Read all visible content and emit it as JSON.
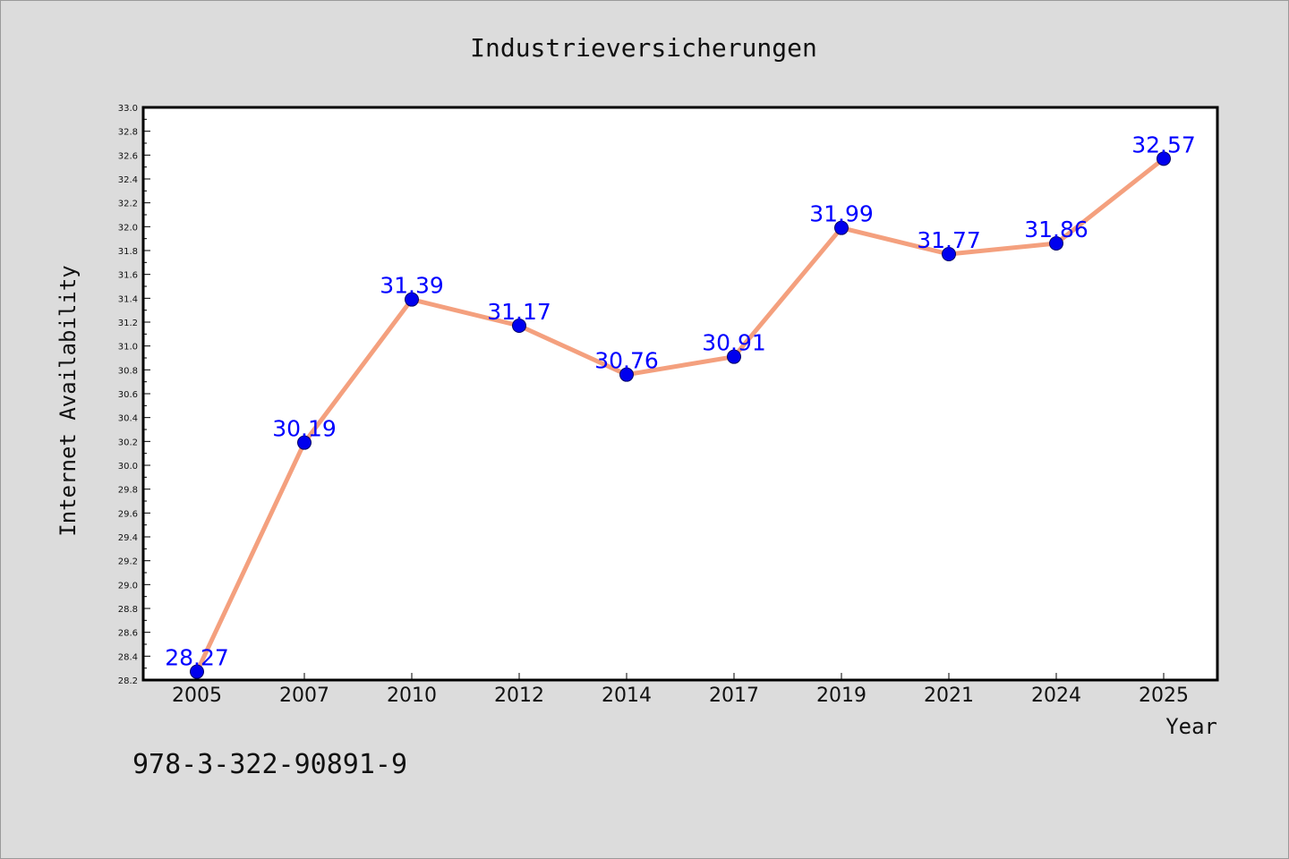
{
  "chart_data": {
    "type": "line",
    "title": "Industrieversicherungen",
    "xlabel": "Year",
    "ylabel": "Internet Availability",
    "categories": [
      "2005",
      "2007",
      "2010",
      "2012",
      "2014",
      "2017",
      "2019",
      "2021",
      "2024",
      "2025"
    ],
    "values": [
      28.27,
      30.19,
      31.39,
      31.17,
      30.76,
      30.91,
      31.99,
      31.77,
      31.86,
      32.57
    ],
    "data_labels": [
      "28.27",
      "30.19",
      "31.39",
      "31.17",
      "30.76",
      "30.91",
      "31.99",
      "31.77",
      "31.86",
      "32.57"
    ],
    "ylim": [
      28.2,
      33.0
    ],
    "y_ticks": [
      "28.2",
      "28.4",
      "28.6",
      "28.8",
      "29.0",
      "29.2",
      "29.4",
      "29.6",
      "29.8",
      "30.0",
      "30.2",
      "30.4",
      "30.6",
      "30.8",
      "31.0",
      "31.2",
      "31.4",
      "31.6",
      "31.8",
      "32.0",
      "32.2",
      "32.4",
      "32.6",
      "32.8",
      "33.0"
    ],
    "grid": false,
    "colors": {
      "line": "#f4a07e",
      "marker": "#0000ee",
      "label": "#0000ff",
      "plot_bg": "#ffffff",
      "page_bg": "#dcdcdc"
    }
  },
  "footer": {
    "isbn": "978-3-322-90891-9"
  }
}
